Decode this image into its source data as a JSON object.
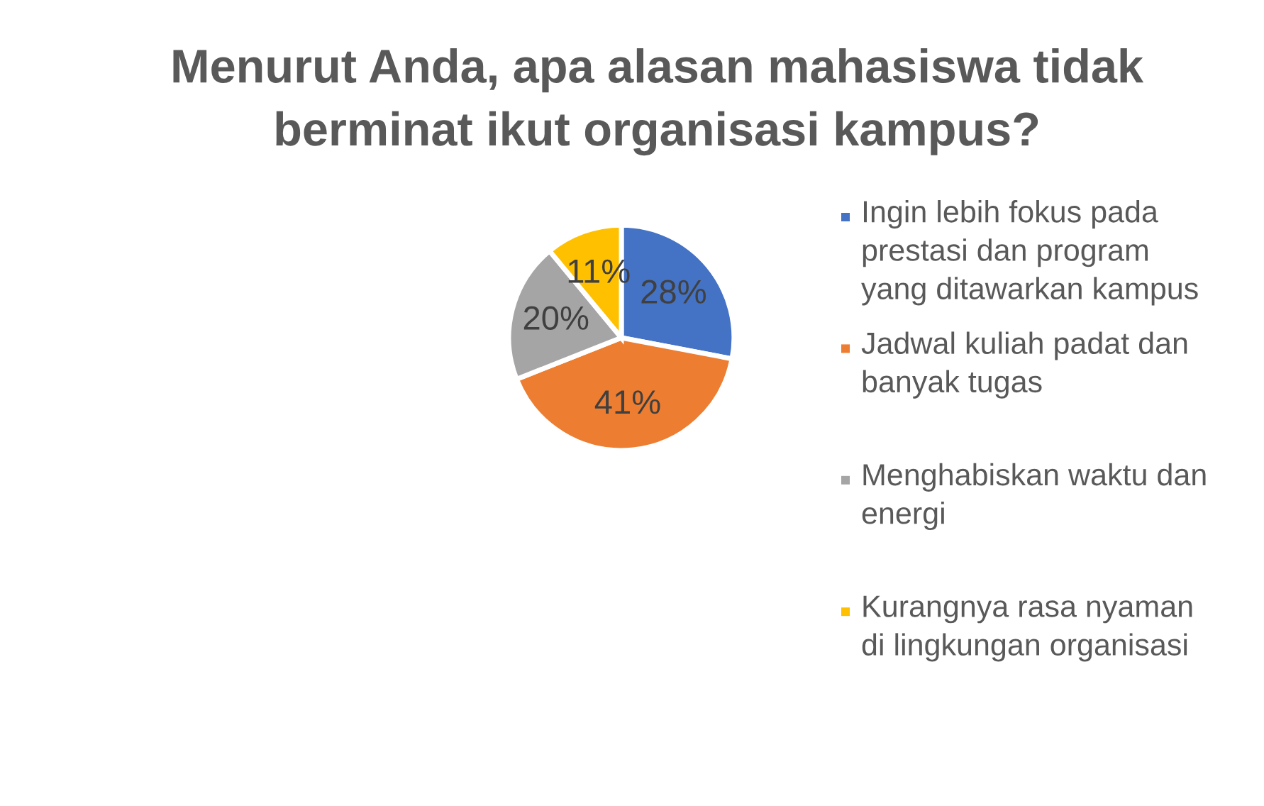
{
  "chart_data": {
    "type": "pie",
    "title": "Menurut Anda, apa alasan mahasiswa tidak berminat ikut organisasi kampus?",
    "categories": [
      "Ingin lebih fokus pada prestasi dan program yang ditawarkan kampus",
      "Jadwal kuliah padat dan banyak tugas",
      "Menghabiskan waktu dan energi",
      "Kurangnya rasa nyaman di lingkungan organisasi"
    ],
    "values": [
      28,
      41,
      20,
      11
    ],
    "colors": [
      "#4472c4",
      "#ed7d31",
      "#a5a5a5",
      "#ffc000"
    ],
    "value_labels": [
      "28%",
      "41%",
      "20%",
      "11%"
    ],
    "legend": "right"
  }
}
